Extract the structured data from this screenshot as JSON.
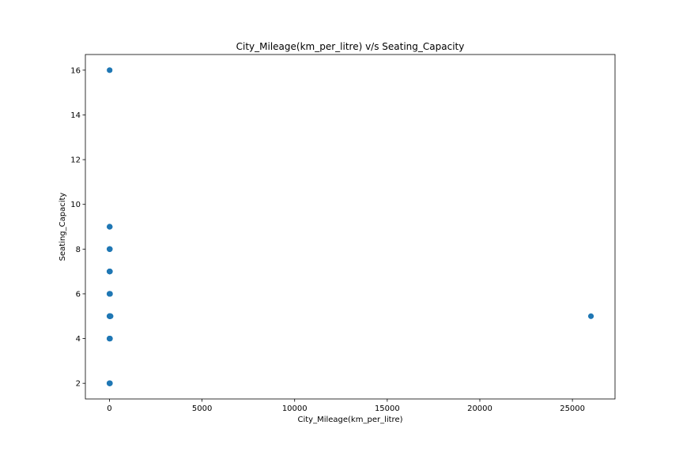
{
  "chart_data": {
    "type": "scatter",
    "title": "City_Mileage(km_per_litre) v/s Seating_Capacity",
    "xlabel": "City_Mileage(km_per_litre)",
    "ylabel": "Seating_Capacity",
    "xlim": [
      -1300,
      27300
    ],
    "ylim": [
      1.3,
      16.7
    ],
    "xticks": [
      0,
      5000,
      10000,
      15000,
      20000,
      25000
    ],
    "xtick_labels": [
      "0",
      "5000",
      "10000",
      "15000",
      "20000",
      "25000"
    ],
    "yticks": [
      2,
      4,
      6,
      8,
      10,
      12,
      14,
      16
    ],
    "ytick_labels": [
      "2",
      "4",
      "6",
      "8",
      "10",
      "12",
      "14",
      "16"
    ],
    "grid": false,
    "marker_color": "#1f77b4",
    "points": [
      {
        "x": 10,
        "y": 16
      },
      {
        "x": 8,
        "y": 9
      },
      {
        "x": 12,
        "y": 9
      },
      {
        "x": 15,
        "y": 9
      },
      {
        "x": 6,
        "y": 8
      },
      {
        "x": 10,
        "y": 8
      },
      {
        "x": 14,
        "y": 8
      },
      {
        "x": 20,
        "y": 8
      },
      {
        "x": 5,
        "y": 7
      },
      {
        "x": 9,
        "y": 7
      },
      {
        "x": 13,
        "y": 7
      },
      {
        "x": 18,
        "y": 7
      },
      {
        "x": 25,
        "y": 7
      },
      {
        "x": 5,
        "y": 6
      },
      {
        "x": 10,
        "y": 6
      },
      {
        "x": 15,
        "y": 6
      },
      {
        "x": 22,
        "y": 6
      },
      {
        "x": 30,
        "y": 6
      },
      {
        "x": 3,
        "y": 5
      },
      {
        "x": 8,
        "y": 5
      },
      {
        "x": 12,
        "y": 5
      },
      {
        "x": 18,
        "y": 5
      },
      {
        "x": 25,
        "y": 5
      },
      {
        "x": 40,
        "y": 5
      },
      {
        "x": 60,
        "y": 5
      },
      {
        "x": 26000,
        "y": 5
      },
      {
        "x": 4,
        "y": 4
      },
      {
        "x": 9,
        "y": 4
      },
      {
        "x": 14,
        "y": 4
      },
      {
        "x": 20,
        "y": 4
      },
      {
        "x": 28,
        "y": 4
      },
      {
        "x": 4,
        "y": 2
      },
      {
        "x": 8,
        "y": 2
      },
      {
        "x": 12,
        "y": 2
      },
      {
        "x": 18,
        "y": 2
      },
      {
        "x": 24,
        "y": 2
      }
    ]
  }
}
